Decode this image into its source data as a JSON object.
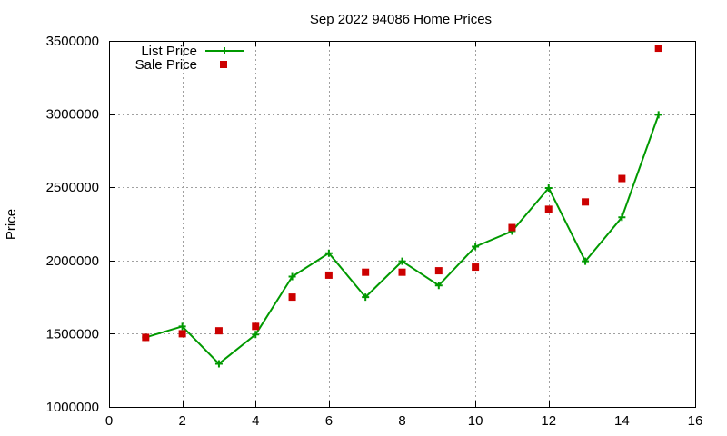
{
  "chart_data": {
    "type": "line",
    "title": "Sep 2022 94086 Home Prices",
    "xlabel": "",
    "ylabel": "Price",
    "xlim": [
      0,
      16
    ],
    "ylim": [
      1000000,
      3500000
    ],
    "x_ticks": [
      0,
      2,
      4,
      6,
      8,
      10,
      12,
      14,
      16
    ],
    "y_ticks": [
      1000000,
      1500000,
      2000000,
      2500000,
      3000000,
      3500000
    ],
    "grid": true,
    "legend_position": "top-left",
    "series": [
      {
        "name": "List Price",
        "style": "line-with-plus-markers",
        "color": "#009900",
        "x": [
          1,
          2,
          3,
          4,
          5,
          6,
          7,
          8,
          9,
          10,
          11,
          12,
          13,
          14,
          15
        ],
        "y": [
          1475000,
          1550000,
          1295000,
          1495000,
          1890000,
          2050000,
          1750000,
          1995000,
          1830000,
          2095000,
          2200000,
          2495000,
          1995000,
          2295000,
          2995000
        ]
      },
      {
        "name": "Sale Price",
        "style": "square-markers",
        "color": "#cc0000",
        "x": [
          1,
          2,
          3,
          4,
          5,
          6,
          7,
          8,
          9,
          10,
          11,
          12,
          13,
          14,
          15
        ],
        "y": [
          1475000,
          1500000,
          1520000,
          1550000,
          1750000,
          1900000,
          1920000,
          1920000,
          1930000,
          1955000,
          2225000,
          2350000,
          2400000,
          2560000,
          3450000
        ]
      }
    ]
  }
}
